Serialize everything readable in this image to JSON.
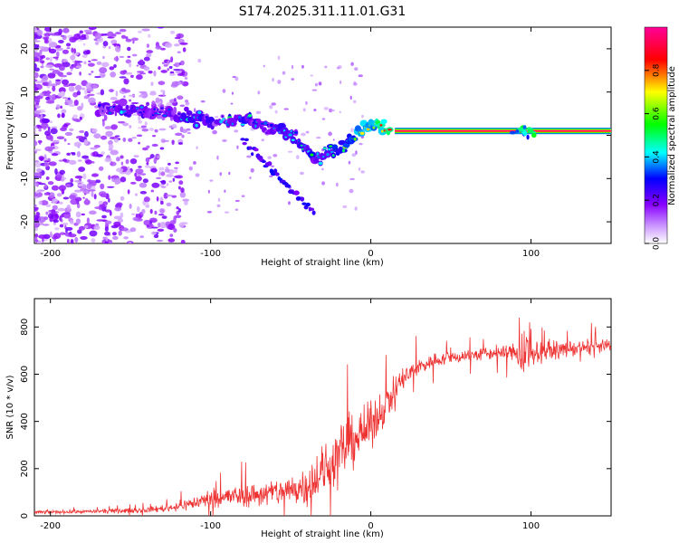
{
  "title": "S174.2025.311.11.01.G31",
  "chart_data": [
    {
      "type": "heatmap",
      "name": "spectrogram",
      "xlabel": "Height of straight line (km)",
      "ylabel": "Frequency (Hz)",
      "xlim": [
        -210,
        150
      ],
      "ylim": [
        -25,
        25
      ],
      "xticks": [
        -200,
        -100,
        0,
        100
      ],
      "yticks": [
        -20,
        -10,
        0,
        10,
        20
      ],
      "colorbar": {
        "label": "Normalized spectral amplitude",
        "ticks": [
          "0.0",
          "0.2",
          "0.4",
          "0.6",
          "0.8"
        ],
        "tick_values": [
          0.0,
          0.2,
          0.4,
          0.6,
          0.8
        ],
        "range": [
          0,
          1
        ],
        "colors": [
          "#ffffff",
          "#cc99ff",
          "#8800ff",
          "#0000ff",
          "#00ffff",
          "#00ff00",
          "#ffff00",
          "#ff0000",
          "#ff0099"
        ]
      },
      "features": {
        "carrier_line": {
          "x_start": 15,
          "x_end": 150,
          "frequency": 1.0,
          "amplitude": 1.0
        },
        "main_track": [
          {
            "x": -170,
            "f": 6,
            "a": 0.3
          },
          {
            "x": -150,
            "f": 6,
            "a": 0.35
          },
          {
            "x": -130,
            "f": 5,
            "a": 0.3
          },
          {
            "x": -110,
            "f": 4,
            "a": 0.4
          },
          {
            "x": -95,
            "f": 3,
            "a": 0.35
          },
          {
            "x": -80,
            "f": 4,
            "a": 0.4
          },
          {
            "x": -65,
            "f": 2,
            "a": 0.35
          },
          {
            "x": -50,
            "f": 0,
            "a": 0.4
          },
          {
            "x": -40,
            "f": -3,
            "a": 0.45
          },
          {
            "x": -32,
            "f": -6,
            "a": 0.4
          },
          {
            "x": -22,
            "f": -3,
            "a": 0.5
          },
          {
            "x": -12,
            "f": -1,
            "a": 0.6
          },
          {
            "x": -4,
            "f": 2,
            "a": 0.7
          },
          {
            "x": 5,
            "f": 2,
            "a": 0.8
          },
          {
            "x": 12,
            "f": 1,
            "a": 0.9
          }
        ]
      }
    },
    {
      "type": "line",
      "name": "snr",
      "xlabel": "Height of straight line (km)",
      "ylabel": "SNR (10 * v/v)",
      "xlim": [
        -210,
        150
      ],
      "ylim": [
        0,
        920
      ],
      "xticks": [
        -200,
        -100,
        0,
        100
      ],
      "yticks": [
        0,
        200,
        400,
        600,
        800
      ],
      "color": "#ee3333",
      "series": [
        {
          "name": "SNR",
          "x": [
            -210,
            -180,
            -160,
            -140,
            -125,
            -110,
            -100,
            -90,
            -80,
            -70,
            -60,
            -50,
            -40,
            -35,
            -30,
            -25,
            -20,
            -15,
            -10,
            -5,
            0,
            5,
            10,
            15,
            20,
            30,
            40,
            50,
            60,
            70,
            80,
            90,
            95,
            100,
            110,
            120,
            130,
            140,
            150
          ],
          "y": [
            15,
            18,
            20,
            25,
            35,
            55,
            75,
            80,
            85,
            90,
            100,
            110,
            130,
            160,
            180,
            220,
            260,
            300,
            330,
            350,
            380,
            430,
            480,
            530,
            580,
            630,
            660,
            670,
            680,
            685,
            690,
            695,
            660,
            690,
            700,
            705,
            710,
            715,
            718
          ],
          "noise": [
            8,
            8,
            10,
            12,
            18,
            30,
            40,
            45,
            50,
            55,
            60,
            70,
            90,
            110,
            120,
            130,
            140,
            130,
            120,
            110,
            100,
            90,
            80,
            70,
            55,
            40,
            30,
            30,
            30,
            30,
            30,
            40,
            90,
            50,
            40,
            35,
            35,
            35,
            35
          ]
        }
      ]
    }
  ]
}
